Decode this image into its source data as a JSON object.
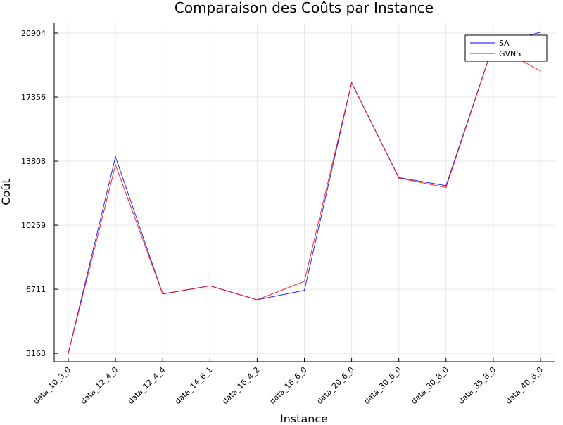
{
  "chart_data": {
    "type": "line",
    "title": "Comparaison des Coûts par Instance",
    "xlabel": "Instance",
    "ylabel": "Coût",
    "categories": [
      "data_10_3_0",
      "data_12_4_0",
      "data_12_4_4",
      "data_14_6_1",
      "data_16_4_2",
      "data_18_6_0",
      "data_20_6_0",
      "data_30_6_0",
      "data_30_8_0",
      "data_35_8_0",
      "data_40_8_0"
    ],
    "y_ticks": [
      3163,
      6711,
      10259,
      13808,
      17356,
      20904
    ],
    "ylim": [
      2700,
      21450
    ],
    "grid": true,
    "legend_position": "top-right",
    "series": [
      {
        "name": "SA",
        "color": "#0000ff",
        "values": [
          3163,
          14050,
          6450,
          6900,
          6130,
          6650,
          18150,
          12900,
          12450,
          20250,
          20950
        ]
      },
      {
        "name": "GVNS",
        "color": "#ff0000",
        "values": [
          3163,
          13600,
          6450,
          6900,
          6130,
          7150,
          18150,
          12870,
          12350,
          20250,
          18800
        ]
      }
    ]
  }
}
